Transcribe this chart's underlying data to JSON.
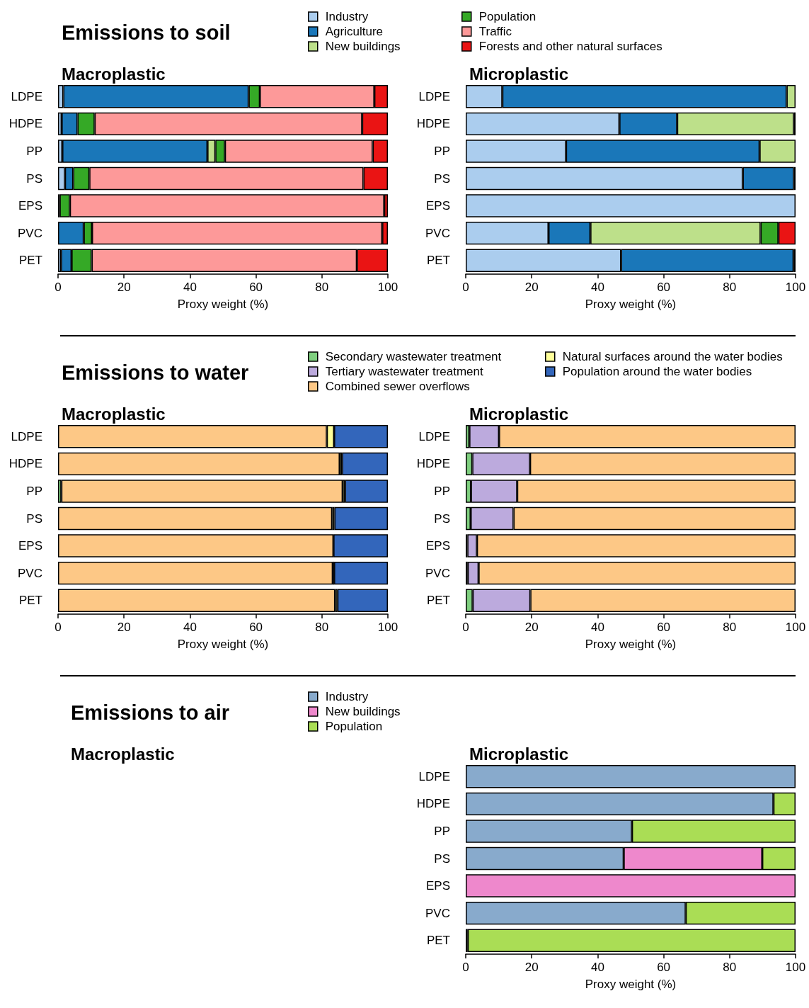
{
  "chart_data": [
    {
      "type": "bar",
      "title": "Emissions to soil",
      "subtitle": "Macroplastic",
      "xlabel": "Proxy weight (%)",
      "orientation": "horizontal",
      "stacked": true,
      "legend": "top",
      "categories": [
        "LDPE",
        "HDPE",
        "PP",
        "PS",
        "EPS",
        "PVC",
        "PET"
      ],
      "xlim": [
        0,
        100
      ],
      "xticks": [
        0,
        20,
        40,
        60,
        80,
        100
      ],
      "series": [
        {
          "name": "Industry",
          "color": "#abcdee",
          "values": [
            1.6,
            1.1,
            1.3,
            2.1,
            0.5,
            null,
            0.9
          ]
        },
        {
          "name": "Agriculture",
          "color": "#1a77b9",
          "values": [
            56.2,
            4.8,
            44.0,
            2.5,
            null,
            7.8,
            3.2
          ]
        },
        {
          "name": "New buildings",
          "color": "#bde08a",
          "values": [
            null,
            null,
            2.4,
            null,
            null,
            null,
            null
          ]
        },
        {
          "name": "Population",
          "color": "#35a926",
          "values": [
            3.4,
            5.2,
            2.9,
            4.9,
            3.1,
            2.5,
            6.1
          ]
        },
        {
          "name": "Traffic",
          "color": "#fd9999",
          "values": [
            34.7,
            81.1,
            44.8,
            83.1,
            95.3,
            88.0,
            80.4
          ]
        },
        {
          "name": "Forests and other natural surfaces",
          "color": "#ea1414",
          "values": [
            4.1,
            7.8,
            4.6,
            7.4,
            1.1,
            1.7,
            9.4
          ]
        }
      ]
    },
    {
      "type": "bar",
      "subtitle": "Microplastic",
      "xlabel": "Proxy weight (%)",
      "orientation": "horizontal",
      "stacked": true,
      "categories": [
        "LDPE",
        "HDPE",
        "PP",
        "PS",
        "EPS",
        "PVC",
        "PET"
      ],
      "xlim": [
        0,
        100
      ],
      "xticks": [
        0,
        20,
        40,
        60,
        80,
        100
      ],
      "series": [
        {
          "color": "#abcdee",
          "values": [
            11.1,
            46.6,
            30.4,
            84.0,
            100,
            25.1,
            47.1
          ]
        },
        {
          "color": "#1a77b9",
          "values": [
            86.2,
            17.5,
            58.7,
            15.5,
            null,
            12.7,
            52.3
          ]
        },
        {
          "color": "#bde08a",
          "values": [
            2.7,
            35.4,
            10.9,
            null,
            null,
            51.6,
            null
          ]
        },
        {
          "color": "#35a926",
          "values": [
            null,
            0.5,
            null,
            0.5,
            null,
            5.4,
            0.6
          ]
        },
        {
          "color": "#ea1414",
          "values": [
            null,
            null,
            null,
            null,
            null,
            5.2,
            null
          ]
        }
      ]
    },
    {
      "type": "bar",
      "title": "Emissions to water",
      "subtitle": "Macroplastic",
      "xlabel": "Proxy weight (%)",
      "orientation": "horizontal",
      "stacked": true,
      "legend": "top",
      "categories": [
        "LDPE",
        "HDPE",
        "PP",
        "PS",
        "EPS",
        "PVC",
        "PET"
      ],
      "xlim": [
        0,
        100
      ],
      "xticks": [
        0,
        20,
        40,
        60,
        80,
        100
      ],
      "series": [
        {
          "name": "Secondary wastewater treatment",
          "color": "#7fcf7f",
          "values": [
            null,
            null,
            1.0,
            null,
            null,
            null,
            null
          ]
        },
        {
          "name": "Tertiary wastewater treatment",
          "color": "#bcaadd",
          "values": [
            null,
            null,
            null,
            null,
            null,
            null,
            null
          ]
        },
        {
          "name": "Combined sewer overflows",
          "color": "#fdc886",
          "values": [
            81.5,
            85.4,
            85.3,
            83.1,
            83.5,
            83.3,
            84.0
          ]
        },
        {
          "name": "Natural surfaces around the water bodies",
          "color": "#ffff99",
          "values": [
            2.2,
            0.7,
            0.7,
            0.7,
            null,
            0.4,
            0.7
          ]
        },
        {
          "name": "Population around the water bodies",
          "color": "#3366bb",
          "values": [
            16.3,
            13.9,
            13.0,
            16.2,
            16.5,
            16.3,
            15.3
          ]
        }
      ]
    },
    {
      "type": "bar",
      "subtitle": "Microplastic",
      "xlabel": "Proxy weight (%)",
      "orientation": "horizontal",
      "stacked": true,
      "categories": [
        "LDPE",
        "HDPE",
        "PP",
        "PS",
        "EPS",
        "PVC",
        "PET"
      ],
      "xlim": [
        0,
        100
      ],
      "xticks": [
        0,
        20,
        40,
        60,
        80,
        100
      ],
      "series": [
        {
          "color": "#7fcf7f",
          "values": [
            1.1,
            2.0,
            1.6,
            1.5,
            0.5,
            0.6,
            2.1
          ]
        },
        {
          "color": "#bcaadd",
          "values": [
            9.0,
            17.5,
            14.0,
            13.0,
            2.9,
            3.3,
            17.5
          ]
        },
        {
          "color": "#fdc886",
          "values": [
            89.9,
            80.5,
            84.4,
            85.5,
            96.6,
            96.1,
            80.4
          ]
        }
      ]
    },
    {
      "type": "other",
      "title": "Emissions to air",
      "subtitle": "Macroplastic"
    },
    {
      "type": "bar",
      "subtitle": "Microplastic",
      "xlabel": "Proxy weight (%)",
      "orientation": "horizontal",
      "stacked": true,
      "legend": "top",
      "categories": [
        "LDPE",
        "HDPE",
        "PP",
        "PS",
        "EPS",
        "PVC",
        "PET"
      ],
      "xlim": [
        0,
        100
      ],
      "xticks": [
        0,
        20,
        40,
        60,
        80,
        100
      ],
      "series": [
        {
          "name": "Industry",
          "color": "#88aacc",
          "values": [
            100,
            93.3,
            50.4,
            47.9,
            null,
            66.7,
            0.6
          ]
        },
        {
          "name": "New buildings",
          "color": "#ee88cc",
          "values": [
            null,
            null,
            null,
            42.0,
            100,
            null,
            null
          ]
        },
        {
          "name": "Population",
          "color": "#aadd55",
          "values": [
            null,
            6.7,
            49.6,
            10.1,
            null,
            33.3,
            99.4
          ]
        }
      ]
    }
  ]
}
